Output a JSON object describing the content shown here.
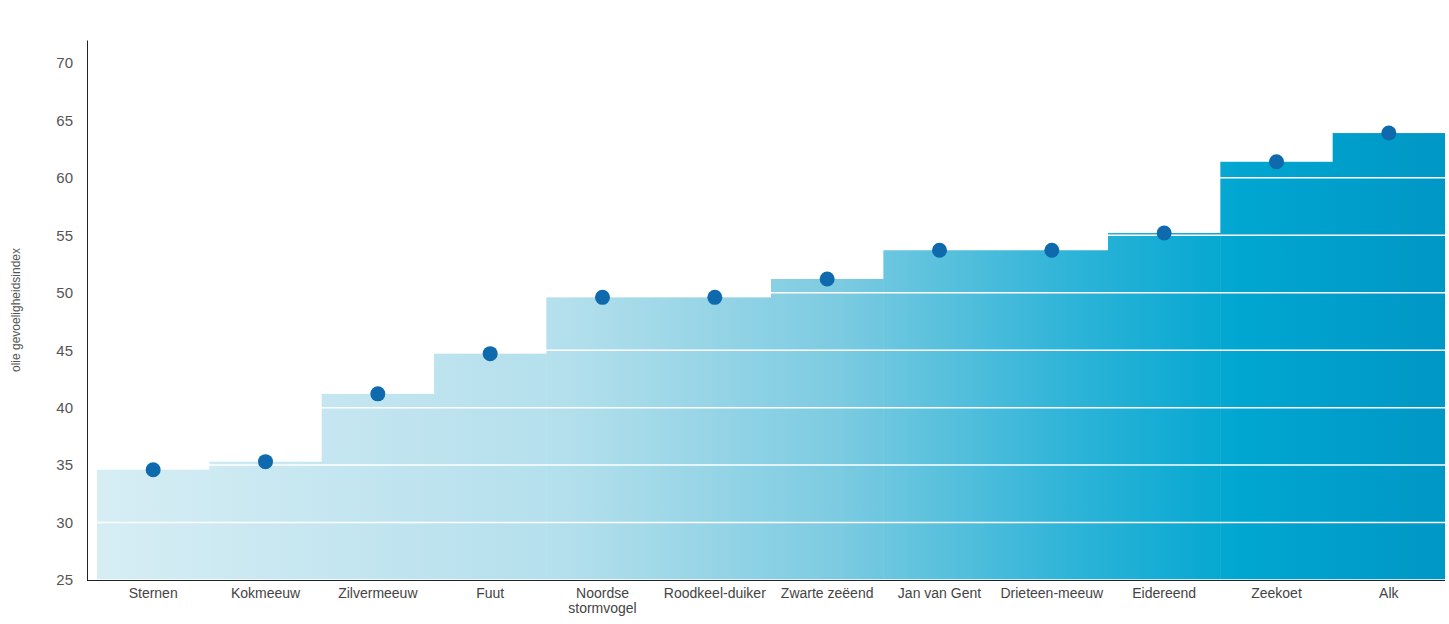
{
  "chart_data": {
    "type": "step",
    "y_label": "olie gevoeligheidsindex",
    "categories": [
      "Sternen",
      "Kokmeeuw",
      "Zilvermeeuw",
      "Fuut",
      "Noordse stormvogel",
      "Roodkeel-duiker",
      "Zwarte zeëend",
      "Jan van Gent",
      "Drieteen-meeuw",
      "Eidereend",
      "Zeekoet",
      "Alk"
    ],
    "values": [
      34.6,
      35.3,
      41.2,
      44.7,
      49.6,
      49.6,
      51.2,
      53.7,
      53.7,
      55.2,
      61.4,
      63.9
    ],
    "color": "#0e6aac",
    "ylim": [
      25,
      72
    ],
    "yticks": [
      25,
      30,
      35,
      40,
      45,
      50,
      55,
      60,
      65,
      70
    ],
    "grid": true,
    "marker": "circle"
  }
}
